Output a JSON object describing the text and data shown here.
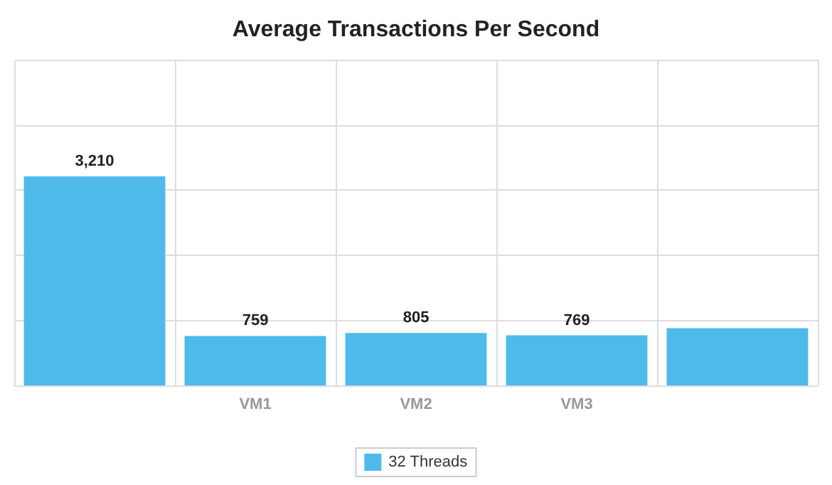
{
  "chart_data": {
    "type": "bar",
    "title": "Average Transactions Per Second",
    "categories": [
      null,
      "VM1",
      "VM2",
      "VM3",
      null
    ],
    "series": [
      {
        "name": "32 Threads",
        "color": "#4dbaea",
        "values": [
          3210,
          759,
          805,
          769,
          880
        ],
        "value_labels": [
          "3,210",
          "759",
          "805",
          "769",
          null
        ]
      }
    ],
    "ylim": [
      0,
      5000
    ],
    "yticks": [
      0,
      1000,
      2000,
      3000,
      4000,
      5000
    ],
    "tick_labels": "x",
    "grid": true,
    "legend": "bottom"
  }
}
